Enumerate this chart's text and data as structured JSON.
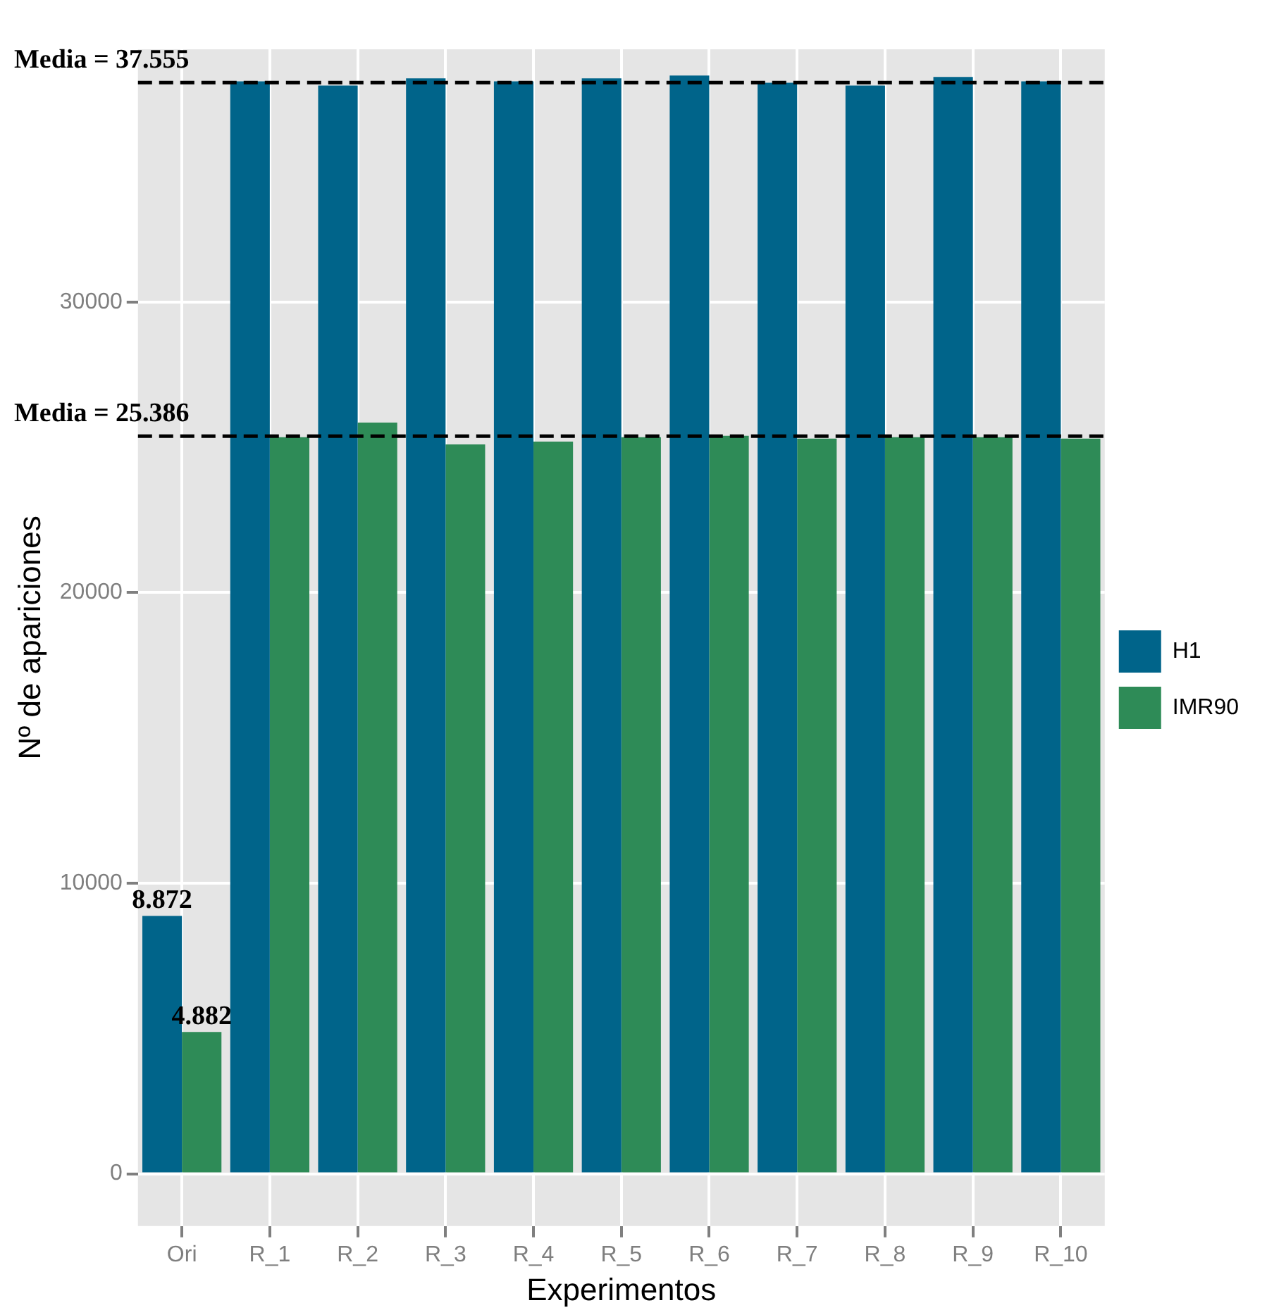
{
  "chart_data": {
    "type": "bar",
    "xlabel": "Experimentos",
    "ylabel": "Nº de apariciones",
    "categories": [
      "Ori",
      "R_1",
      "R_2",
      "R_3",
      "R_4",
      "R_5",
      "R_6",
      "R_7",
      "R_8",
      "R_9",
      "R_10"
    ],
    "series": [
      {
        "name": "H1",
        "color": "#00648a",
        "values": [
          8872,
          37600,
          37450,
          37700,
          37600,
          37700,
          37800,
          37550,
          37450,
          37750,
          37600
        ],
        "value_labels": [
          "8.872",
          null,
          null,
          null,
          null,
          null,
          null,
          null,
          null,
          null,
          null
        ]
      },
      {
        "name": "IMR90",
        "color": "#2e8b57",
        "values": [
          4882,
          25350,
          25850,
          25100,
          25200,
          25350,
          25400,
          25300,
          25350,
          25350,
          25300
        ],
        "value_labels": [
          "4.882",
          null,
          null,
          null,
          null,
          null,
          null,
          null,
          null,
          null,
          null
        ]
      }
    ],
    "ylim": [
      -1800,
      38700
    ],
    "yticks": [
      0,
      10000,
      20000,
      30000
    ],
    "grid": true,
    "legend": "right",
    "ref_lines": [
      {
        "axis": "y",
        "value": 37555,
        "label": "Media = 37.555",
        "color": "#000000",
        "line_style": "dashed"
      },
      {
        "axis": "y",
        "value": 25386,
        "label": "Media = 25.386",
        "color": "#000000",
        "line_style": "dashed"
      }
    ]
  }
}
